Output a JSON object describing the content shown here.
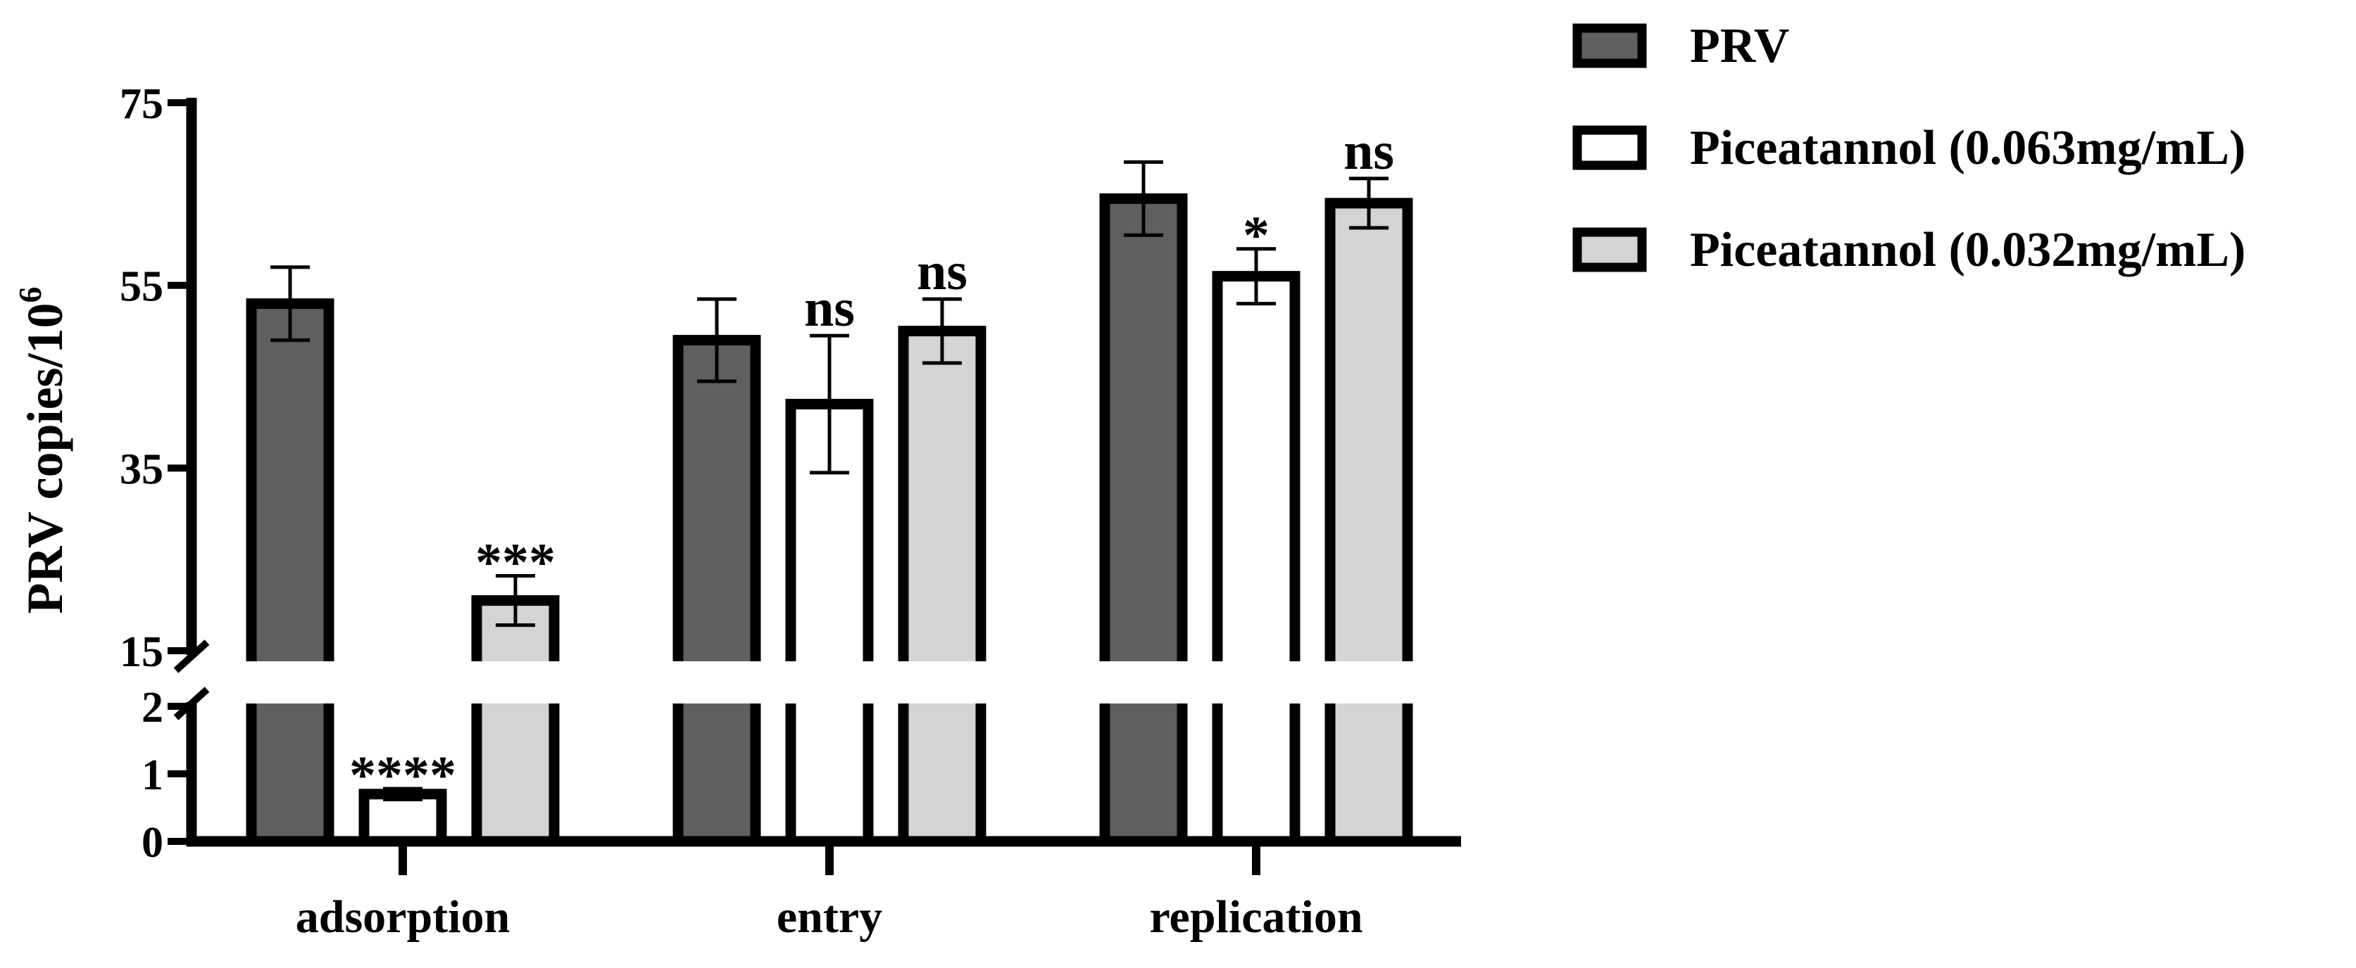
{
  "chart_data": {
    "type": "bar",
    "ylabel": "PRV copies/10",
    "ylabel_sup": "6",
    "categories": [
      "adsorption",
      "entry",
      "replication"
    ],
    "y_axis": {
      "broken": true,
      "lower_range": [
        0,
        2
      ],
      "upper_range": [
        15,
        75
      ],
      "lower_ticks": [
        0,
        1,
        2
      ],
      "upper_ticks": [
        15,
        35,
        55,
        75
      ]
    },
    "series": [
      {
        "name": "PRV",
        "color": "#5f5f5f",
        "values": [
          53,
          49,
          64.5
        ],
        "errors": [
          4,
          4.5,
          4
        ],
        "annotations": [
          "",
          "",
          ""
        ]
      },
      {
        "name": "Piceatannol (0.063mg/mL)",
        "color": "#ffffff",
        "values": [
          0.7,
          42,
          56
        ],
        "errors": [
          0.08,
          7.5,
          3
        ],
        "annotations": [
          "****",
          "ns",
          "*"
        ]
      },
      {
        "name": "Piceatannol (0.032mg/mL)",
        "color": "#d4d4d4",
        "values": [
          20.5,
          50,
          64
        ],
        "errors": [
          2.7,
          3.5,
          2.7
        ],
        "annotations": [
          "***",
          "ns",
          "ns"
        ]
      }
    ],
    "legend_position": "top-right",
    "grid": false
  }
}
